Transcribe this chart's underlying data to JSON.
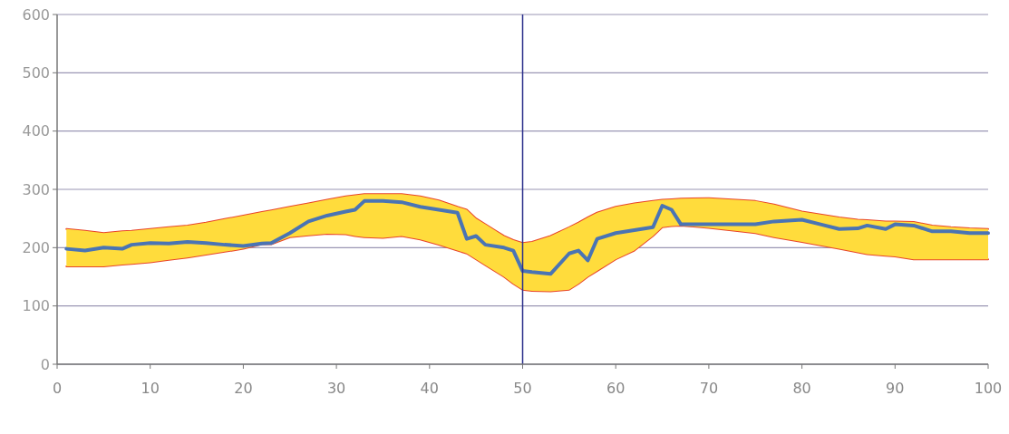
{
  "chart_data": {
    "type": "line",
    "xlim": [
      0,
      100
    ],
    "ylim": [
      0,
      600
    ],
    "xticks": [
      0,
      10,
      20,
      30,
      40,
      50,
      60,
      70,
      80,
      90,
      100
    ],
    "yticks": [
      0,
      100,
      200,
      300,
      400,
      500,
      600
    ],
    "grid": "y",
    "marker": "none",
    "line_style": "solid",
    "ref_lines": [
      {
        "axis": "x",
        "value": 50,
        "color": "#2a2f8a"
      }
    ],
    "series": [
      {
        "color": "#4a74b4",
        "x": [
          1,
          3,
          5,
          7,
          8,
          10,
          12,
          14,
          16,
          18,
          20,
          22,
          23,
          25,
          27,
          29,
          31,
          32,
          33,
          35,
          37,
          39,
          41,
          43,
          44,
          45,
          46,
          48,
          49,
          50,
          51,
          53,
          55,
          56,
          57,
          58,
          60,
          62,
          64,
          65,
          66,
          67,
          70,
          75,
          77,
          80,
          82,
          84,
          86,
          87,
          89,
          90,
          92,
          94,
          96,
          98,
          100
        ],
        "values": [
          198,
          195,
          200,
          198,
          205,
          208,
          207,
          210,
          208,
          205,
          203,
          207,
          208,
          225,
          245,
          255,
          262,
          265,
          280,
          280,
          278,
          270,
          265,
          260,
          215,
          220,
          205,
          200,
          195,
          160,
          158,
          155,
          190,
          195,
          178,
          215,
          225,
          230,
          235,
          272,
          265,
          240,
          240,
          240,
          245,
          248,
          240,
          232,
          233,
          238,
          232,
          240,
          238,
          228,
          228,
          225,
          225
        ],
        "lower": [
          168,
          168,
          168,
          171,
          172,
          175,
          179,
          183,
          188,
          193,
          198,
          206,
          206,
          218,
          221,
          224,
          223,
          220,
          218,
          217,
          220,
          214,
          205,
          195,
          190,
          180,
          170,
          150,
          138,
          128,
          126,
          125,
          128,
          138,
          150,
          160,
          180,
          195,
          220,
          235,
          237,
          238,
          234,
          225,
          218,
          210,
          204,
          198,
          192,
          189,
          186,
          185,
          180,
          180,
          180,
          180,
          180
        ],
        "upper": [
          232,
          229,
          225,
          228,
          229,
          232,
          235,
          238,
          243,
          249,
          255,
          261,
          264,
          270,
          276,
          282,
          288,
          290,
          292,
          292,
          292,
          288,
          281,
          270,
          265,
          250,
          240,
          220,
          213,
          208,
          210,
          220,
          235,
          243,
          252,
          260,
          270,
          276,
          280,
          282,
          283,
          284,
          285,
          280,
          274,
          262,
          257,
          252,
          248,
          247,
          245,
          245,
          244,
          238,
          235,
          233,
          232
        ]
      },
      {
        "color": "#e8442a",
        "x": [
          1,
          3,
          5,
          7,
          8,
          10,
          12,
          14,
          16,
          18,
          20,
          22,
          23,
          25,
          27,
          29,
          31,
          32,
          33,
          35,
          37,
          39,
          41,
          43,
          44,
          45,
          46,
          48,
          49,
          50,
          51,
          53,
          55,
          56,
          57,
          58,
          60,
          62,
          64,
          65,
          66,
          67,
          70,
          75,
          77,
          80,
          82,
          84,
          86,
          87,
          89,
          90,
          92,
          94,
          96,
          98,
          100
        ],
        "values": [
          232,
          229,
          225,
          228,
          229,
          232,
          235,
          238,
          243,
          249,
          255,
          261,
          264,
          270,
          276,
          282,
          288,
          290,
          292,
          292,
          292,
          288,
          281,
          270,
          265,
          250,
          240,
          220,
          213,
          208,
          210,
          220,
          235,
          243,
          252,
          260,
          270,
          276,
          280,
          282,
          283,
          284,
          285,
          280,
          274,
          262,
          257,
          252,
          248,
          247,
          245,
          245,
          244,
          238,
          235,
          233,
          232
        ]
      },
      {
        "color": "#e8442a",
        "x": [
          1,
          3,
          5,
          7,
          8,
          10,
          12,
          14,
          16,
          18,
          20,
          22,
          23,
          25,
          27,
          29,
          31,
          32,
          33,
          35,
          37,
          39,
          41,
          43,
          44,
          45,
          46,
          48,
          49,
          50,
          51,
          53,
          55,
          56,
          57,
          58,
          60,
          62,
          64,
          65,
          66,
          67,
          70,
          75,
          77,
          80,
          82,
          84,
          86,
          87,
          89,
          90,
          92,
          94,
          96,
          98,
          100
        ],
        "values": [
          168,
          168,
          168,
          171,
          172,
          175,
          179,
          183,
          188,
          193,
          198,
          206,
          206,
          218,
          221,
          224,
          223,
          220,
          218,
          217,
          220,
          214,
          205,
          195,
          190,
          180,
          170,
          150,
          138,
          128,
          126,
          125,
          128,
          138,
          150,
          160,
          180,
          195,
          220,
          235,
          237,
          238,
          234,
          225,
          218,
          210,
          204,
          198,
          192,
          189,
          186,
          185,
          180,
          180,
          180,
          180,
          180
        ]
      }
    ]
  }
}
